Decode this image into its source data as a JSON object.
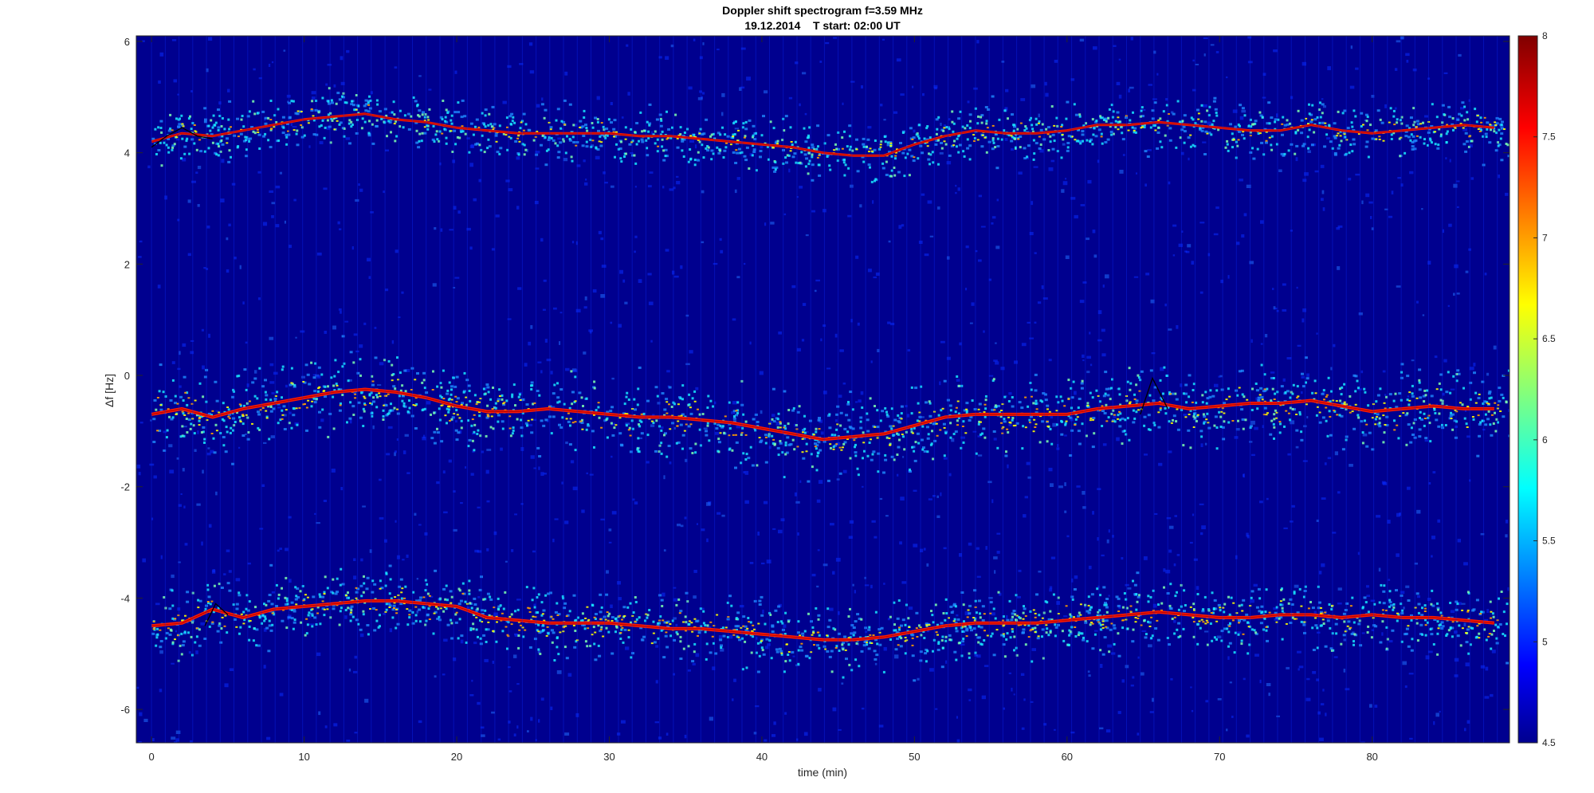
{
  "chart_data": {
    "type": "heatmap",
    "title": "Doppler shift spectrogram f=3.59 MHz",
    "subtitle": "19.12.2014    T start: 02:00 UT",
    "xlabel": "time (min)",
    "ylabel": "Δf [Hz]",
    "xlim": [
      -1,
      89
    ],
    "ylim": [
      -6.6,
      6.1
    ],
    "x_ticks": [
      0,
      10,
      20,
      30,
      40,
      50,
      60,
      70,
      80
    ],
    "y_ticks": [
      6,
      4,
      2,
      0,
      -2,
      -4,
      -6
    ],
    "colorbar": {
      "range": [
        4.5,
        8
      ],
      "ticks": [
        "8",
        "7.5",
        "7",
        "6.5",
        "6",
        "5.5",
        "5",
        "4.5"
      ],
      "colormap": "jet"
    },
    "series": [
      {
        "x": [
          0,
          2,
          4,
          6,
          8,
          10,
          12,
          14,
          16,
          18,
          20,
          22,
          24,
          26,
          28,
          30,
          32,
          34,
          36,
          38,
          40,
          42,
          44,
          46,
          48,
          50,
          52,
          54,
          56,
          58,
          60,
          62,
          64,
          66,
          68,
          70,
          72,
          74,
          76,
          78,
          80,
          82,
          84,
          86,
          88
        ],
        "y": [
          4.2,
          4.35,
          4.3,
          4.4,
          4.5,
          4.6,
          4.65,
          4.7,
          4.6,
          4.55,
          4.45,
          4.4,
          4.35,
          4.35,
          4.35,
          4.35,
          4.3,
          4.3,
          4.25,
          4.2,
          4.15,
          4.1,
          4.0,
          3.95,
          3.95,
          4.15,
          4.3,
          4.4,
          4.35,
          4.35,
          4.4,
          4.5,
          4.5,
          4.55,
          4.5,
          4.45,
          4.4,
          4.4,
          4.5,
          4.4,
          4.35,
          4.4,
          4.45,
          4.5,
          4.45
        ]
      },
      {
        "x": [
          0,
          2,
          4,
          6,
          8,
          10,
          12,
          14,
          16,
          18,
          20,
          22,
          24,
          26,
          28,
          30,
          32,
          34,
          36,
          38,
          40,
          42,
          44,
          46,
          48,
          50,
          52,
          54,
          56,
          58,
          60,
          62,
          64,
          66,
          68,
          70,
          72,
          74,
          76,
          78,
          80,
          82,
          84,
          86,
          88
        ],
        "y": [
          -0.7,
          -0.6,
          -0.75,
          -0.6,
          -0.5,
          -0.4,
          -0.3,
          -0.25,
          -0.3,
          -0.4,
          -0.55,
          -0.65,
          -0.65,
          -0.6,
          -0.65,
          -0.7,
          -0.75,
          -0.75,
          -0.8,
          -0.85,
          -0.95,
          -1.05,
          -1.15,
          -1.1,
          -1.05,
          -0.9,
          -0.75,
          -0.7,
          -0.7,
          -0.7,
          -0.7,
          -0.6,
          -0.55,
          -0.5,
          -0.6,
          -0.55,
          -0.5,
          -0.5,
          -0.45,
          -0.55,
          -0.65,
          -0.6,
          -0.55,
          -0.6,
          -0.6
        ]
      },
      {
        "x": [
          0,
          2,
          4,
          6,
          8,
          10,
          12,
          14,
          16,
          18,
          20,
          22,
          24,
          26,
          28,
          30,
          32,
          34,
          36,
          38,
          40,
          42,
          44,
          46,
          48,
          50,
          52,
          54,
          56,
          58,
          60,
          62,
          64,
          66,
          68,
          70,
          72,
          74,
          76,
          78,
          80,
          82,
          84,
          86,
          88
        ],
        "y": [
          -4.5,
          -4.45,
          -4.2,
          -4.35,
          -4.2,
          -4.15,
          -4.1,
          -4.05,
          -4.05,
          -4.1,
          -4.15,
          -4.35,
          -4.4,
          -4.45,
          -4.45,
          -4.45,
          -4.5,
          -4.55,
          -4.55,
          -4.6,
          -4.65,
          -4.7,
          -4.75,
          -4.75,
          -4.7,
          -4.6,
          -4.5,
          -4.45,
          -4.45,
          -4.45,
          -4.4,
          -4.35,
          -4.3,
          -4.25,
          -4.3,
          -4.35,
          -4.35,
          -4.3,
          -4.3,
          -4.35,
          -4.3,
          -4.35,
          -4.35,
          -4.4,
          -4.45
        ]
      }
    ],
    "black_trace_segments": [
      {
        "x": [
          0,
          1,
          2,
          3,
          4
        ],
        "y": [
          4.1,
          4.3,
          4.45,
          4.3,
          4.25
        ]
      },
      {
        "x": [
          3.5,
          4.2,
          5.0
        ],
        "y": [
          -4.5,
          -4.1,
          -4.3
        ]
      },
      {
        "x": [
          64.8,
          65.6,
          66.6
        ],
        "y": [
          -0.7,
          -0.05,
          -0.6
        ]
      }
    ]
  }
}
